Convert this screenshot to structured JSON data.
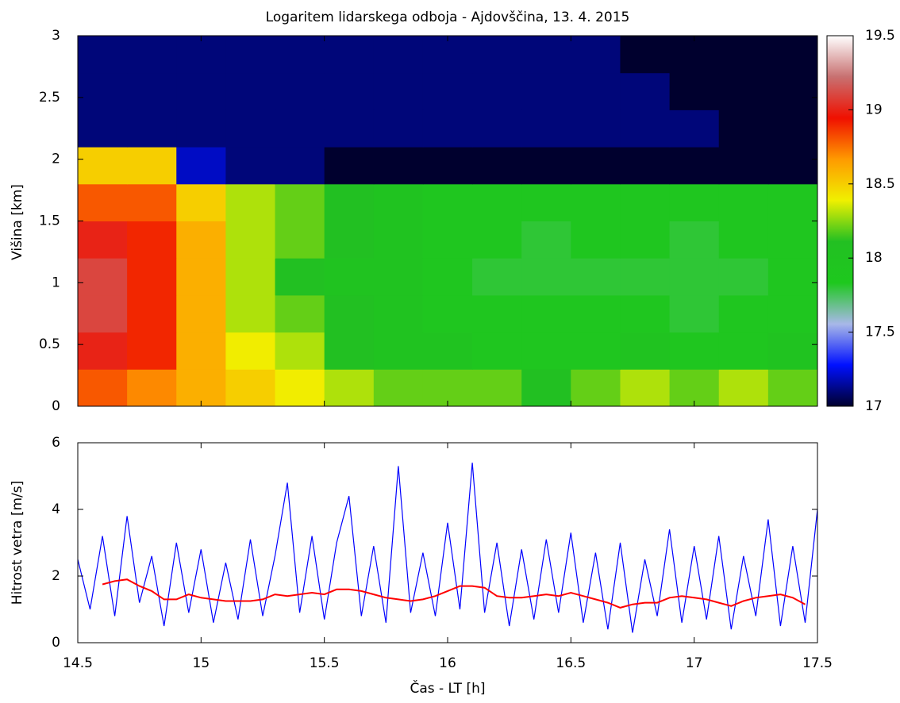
{
  "chart_data": [
    {
      "type": "heatmap",
      "title": "Logaritem lidarskega odboja - Ajdovščina, 13. 4. 2015",
      "ylabel": "Višina [km]",
      "xlim": [
        14.5,
        17.5
      ],
      "xticks": [
        14.5,
        15,
        15.5,
        16,
        16.5,
        17,
        17.5
      ],
      "ylim": [
        0,
        3
      ],
      "yticks": [
        0,
        0.5,
        1,
        1.5,
        2,
        2.5,
        3
      ],
      "zlim": [
        17,
        19.5
      ],
      "zticks": [
        17,
        17.5,
        18,
        18.5,
        19,
        19.5
      ],
      "colormap": [
        "#00002e",
        "#0010ff",
        "#a8b8e8",
        "#1ec81e",
        "#22c022",
        "#f0f000",
        "#ff9a00",
        "#f01000",
        "#c87070",
        "#ffffff"
      ],
      "x": [
        14.6,
        14.8,
        15.0,
        15.2,
        15.4,
        15.6,
        15.8,
        16.0,
        16.2,
        16.4,
        16.6,
        16.8,
        17.0,
        17.2,
        17.4
      ],
      "y": [
        0.15,
        0.45,
        0.75,
        1.05,
        1.35,
        1.65,
        1.95,
        2.25,
        2.55,
        2.85
      ],
      "z": [
        [
          18.8,
          18.7,
          18.6,
          18.5,
          18.4,
          18.3,
          18.2,
          18.2,
          18.2,
          18.1,
          18.2,
          18.3,
          18.2,
          18.3,
          18.2
        ],
        [
          19.0,
          18.9,
          18.6,
          18.4,
          18.3,
          18.1,
          18.0,
          18.0,
          17.9,
          17.9,
          17.9,
          18.0,
          17.9,
          17.9,
          18.0
        ],
        [
          19.1,
          18.9,
          18.6,
          18.3,
          18.2,
          18.1,
          18.0,
          17.9,
          17.9,
          17.9,
          17.9,
          17.9,
          17.8,
          17.9,
          17.9
        ],
        [
          19.1,
          18.9,
          18.6,
          18.3,
          18.1,
          18.0,
          18.0,
          17.9,
          17.8,
          17.8,
          17.8,
          17.8,
          17.8,
          17.8,
          17.9
        ],
        [
          19.0,
          18.9,
          18.6,
          18.3,
          18.2,
          18.1,
          18.0,
          17.9,
          17.9,
          17.8,
          17.9,
          17.9,
          17.8,
          17.9,
          17.9
        ],
        [
          18.8,
          18.8,
          18.5,
          18.3,
          18.2,
          18.1,
          18.0,
          17.9,
          17.9,
          17.9,
          17.9,
          17.9,
          17.9,
          17.9,
          17.9
        ],
        [
          18.5,
          18.5,
          17.2,
          17.1,
          17.1,
          17.0,
          17.0,
          17.0,
          17.0,
          17.0,
          17.0,
          17.0,
          17.0,
          17.0,
          17.0
        ],
        [
          17.1,
          17.1,
          17.1,
          17.1,
          17.1,
          17.1,
          17.1,
          17.1,
          17.1,
          17.1,
          17.1,
          17.1,
          17.1,
          17.0,
          17.0
        ],
        [
          17.1,
          17.1,
          17.1,
          17.1,
          17.1,
          17.1,
          17.1,
          17.1,
          17.1,
          17.1,
          17.1,
          17.1,
          17.0,
          17.0,
          17.0
        ],
        [
          17.1,
          17.1,
          17.1,
          17.1,
          17.1,
          17.1,
          17.1,
          17.1,
          17.1,
          17.1,
          17.1,
          17.0,
          17.0,
          17.0,
          17.0
        ]
      ]
    },
    {
      "type": "line",
      "xlabel": "Čas - LT [h]",
      "ylabel": "Hitrost vetra [m/s]",
      "xlim": [
        14.5,
        17.5
      ],
      "xticks": [
        14.5,
        15,
        15.5,
        16,
        16.5,
        17,
        17.5
      ],
      "ylim": [
        0,
        6
      ],
      "yticks": [
        0,
        2,
        4,
        6
      ],
      "x": [
        14.5,
        14.55,
        14.6,
        14.65,
        14.7,
        14.75,
        14.8,
        14.85,
        14.9,
        14.95,
        15.0,
        15.05,
        15.1,
        15.15,
        15.2,
        15.25,
        15.3,
        15.35,
        15.4,
        15.45,
        15.5,
        15.55,
        15.6,
        15.65,
        15.7,
        15.75,
        15.8,
        15.85,
        15.9,
        15.95,
        16.0,
        16.05,
        16.1,
        16.15,
        16.2,
        16.25,
        16.3,
        16.35,
        16.4,
        16.45,
        16.5,
        16.55,
        16.6,
        16.65,
        16.7,
        16.75,
        16.8,
        16.85,
        16.9,
        16.95,
        17.0,
        17.05,
        17.1,
        17.15,
        17.2,
        17.25,
        17.3,
        17.35,
        17.4,
        17.45,
        17.5
      ],
      "series": [
        {
          "color": "#0000ff",
          "values": [
            2.5,
            1.0,
            3.2,
            0.8,
            3.8,
            1.2,
            2.6,
            0.5,
            3.0,
            0.9,
            2.8,
            0.6,
            2.4,
            0.7,
            3.1,
            0.8,
            2.6,
            4.8,
            0.9,
            3.2,
            0.7,
            3.0,
            4.4,
            0.8,
            2.9,
            0.6,
            5.3,
            0.9,
            2.7,
            0.8,
            3.6,
            1.0,
            5.4,
            0.9,
            3.0,
            0.5,
            2.8,
            0.7,
            3.1,
            0.9,
            3.3,
            0.6,
            2.7,
            0.4,
            3.0,
            0.3,
            2.5,
            0.8,
            3.4,
            0.6,
            2.9,
            0.7,
            3.2,
            0.4,
            2.6,
            0.8,
            3.7,
            0.5,
            2.9,
            0.6,
            4.0
          ]
        },
        {
          "color": "#ff0000",
          "values": [
            null,
            null,
            1.75,
            1.85,
            1.9,
            1.7,
            1.55,
            1.3,
            1.3,
            1.45,
            1.35,
            1.3,
            1.25,
            1.25,
            1.25,
            1.3,
            1.45,
            1.4,
            1.45,
            1.5,
            1.45,
            1.6,
            1.6,
            1.55,
            1.45,
            1.35,
            1.3,
            1.25,
            1.3,
            1.4,
            1.55,
            1.7,
            1.7,
            1.65,
            1.4,
            1.35,
            1.35,
            1.4,
            1.45,
            1.4,
            1.5,
            1.4,
            1.3,
            1.2,
            1.05,
            1.15,
            1.2,
            1.2,
            1.35,
            1.4,
            1.35,
            1.3,
            1.2,
            1.1,
            1.25,
            1.35,
            1.4,
            1.45,
            1.35,
            1.15,
            null
          ]
        }
      ]
    }
  ]
}
